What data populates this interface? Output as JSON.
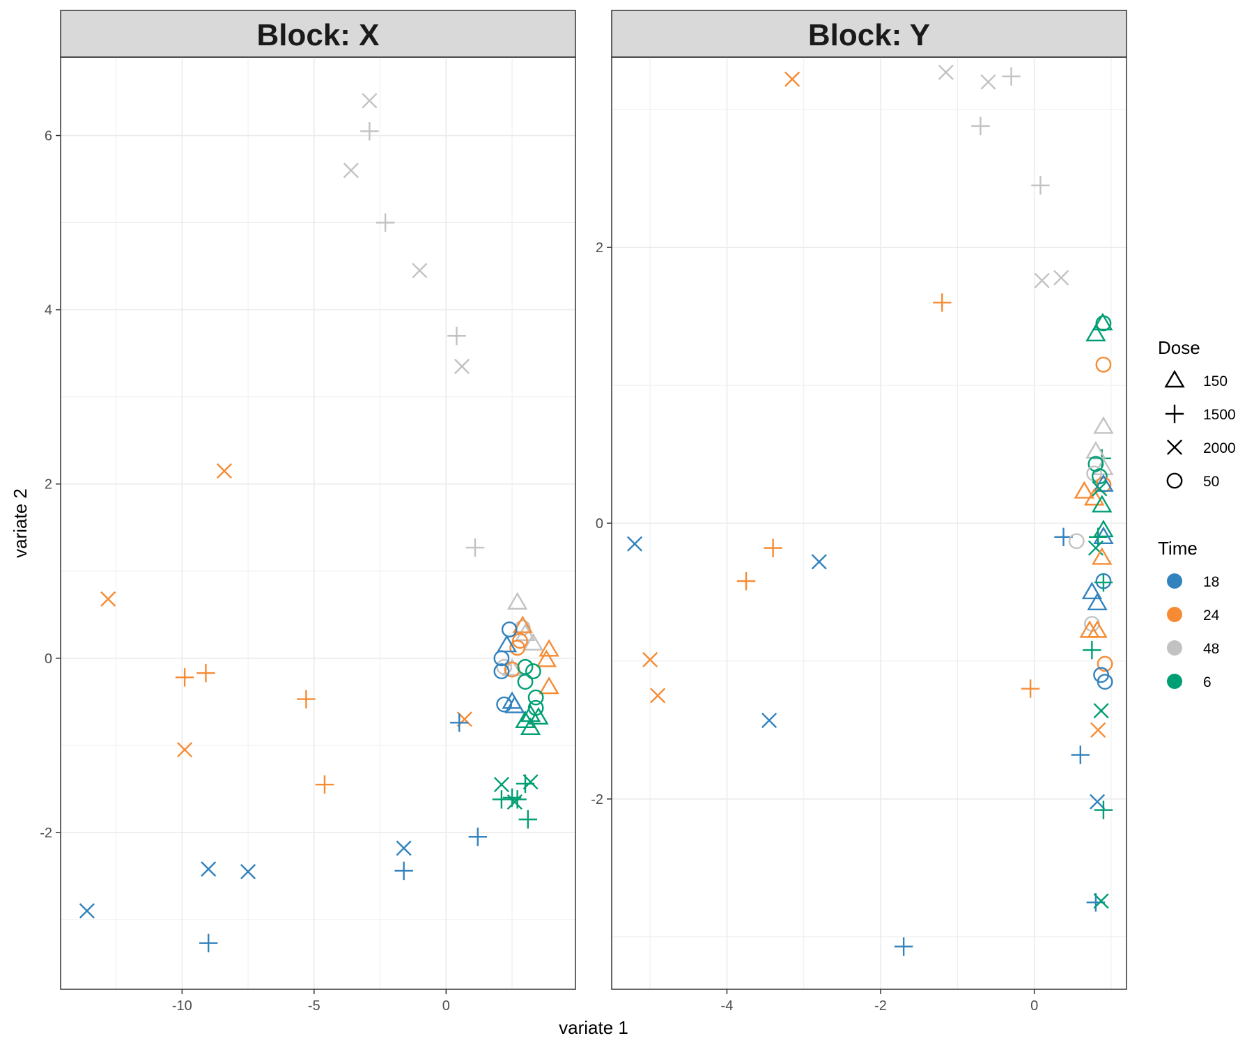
{
  "chart_data": {
    "type": "scatter",
    "xlabel": "variate 1",
    "ylabel": "variate 2",
    "colors": {
      "18": "#3182bd",
      "24": "#f68b33",
      "48": "#c2c2c2",
      "6": "#009e73"
    },
    "legends": [
      {
        "title": "Dose",
        "kind": "shape",
        "entries": [
          {
            "label": "150",
            "shape": "triangle"
          },
          {
            "label": "1500",
            "shape": "plus"
          },
          {
            "label": "2000",
            "shape": "cross"
          },
          {
            "label": "50",
            "shape": "circle"
          }
        ]
      },
      {
        "title": "Time",
        "kind": "color",
        "entries": [
          {
            "label": "18",
            "color": "#3182bd"
          },
          {
            "label": "24",
            "color": "#f68b33"
          },
          {
            "label": "48",
            "color": "#c2c2c2"
          },
          {
            "label": "6",
            "color": "#009e73"
          }
        ]
      }
    ],
    "panels": [
      {
        "title": "Block: X",
        "xlim": [
          -14.6,
          4.9
        ],
        "ylim": [
          -3.8,
          6.9
        ],
        "xticks": [
          -10,
          -5,
          0
        ],
        "yticks": [
          -2,
          0,
          2,
          4,
          6
        ],
        "grid": true,
        "points": [
          {
            "x": -2.9,
            "y": 6.4,
            "dose": "2000",
            "time": "48"
          },
          {
            "x": -2.9,
            "y": 6.05,
            "dose": "1500",
            "time": "48"
          },
          {
            "x": -3.6,
            "y": 5.6,
            "dose": "2000",
            "time": "48"
          },
          {
            "x": -2.3,
            "y": 5.0,
            "dose": "1500",
            "time": "48"
          },
          {
            "x": -1.0,
            "y": 4.45,
            "dose": "2000",
            "time": "48"
          },
          {
            "x": 0.4,
            "y": 3.7,
            "dose": "1500",
            "time": "48"
          },
          {
            "x": 0.6,
            "y": 3.35,
            "dose": "2000",
            "time": "48"
          },
          {
            "x": 1.1,
            "y": 1.27,
            "dose": "1500",
            "time": "48"
          },
          {
            "x": -8.4,
            "y": 2.15,
            "dose": "2000",
            "time": "24"
          },
          {
            "x": -12.8,
            "y": 0.68,
            "dose": "2000",
            "time": "24"
          },
          {
            "x": -9.9,
            "y": -0.22,
            "dose": "1500",
            "time": "24"
          },
          {
            "x": -9.1,
            "y": -0.17,
            "dose": "1500",
            "time": "24"
          },
          {
            "x": -5.3,
            "y": -0.47,
            "dose": "1500",
            "time": "24"
          },
          {
            "x": -9.9,
            "y": -1.05,
            "dose": "2000",
            "time": "24"
          },
          {
            "x": -4.6,
            "y": -1.45,
            "dose": "1500",
            "time": "24"
          },
          {
            "x": 0.7,
            "y": -0.7,
            "dose": "2000",
            "time": "24"
          },
          {
            "x": 0.5,
            "y": -0.74,
            "dose": "1500",
            "time": "18"
          },
          {
            "x": -1.6,
            "y": -2.18,
            "dose": "2000",
            "time": "18"
          },
          {
            "x": -1.6,
            "y": -2.44,
            "dose": "1500",
            "time": "18"
          },
          {
            "x": 1.2,
            "y": -2.05,
            "dose": "1500",
            "time": "18"
          },
          {
            "x": -9.0,
            "y": -2.42,
            "dose": "2000",
            "time": "18"
          },
          {
            "x": -7.5,
            "y": -2.45,
            "dose": "2000",
            "time": "18"
          },
          {
            "x": -13.6,
            "y": -2.9,
            "dose": "2000",
            "time": "18"
          },
          {
            "x": -9.0,
            "y": -3.27,
            "dose": "1500",
            "time": "18"
          },
          {
            "x": 2.1,
            "y": -1.45,
            "dose": "2000",
            "time": "6"
          },
          {
            "x": 2.1,
            "y": -1.62,
            "dose": "1500",
            "time": "6"
          },
          {
            "x": 2.5,
            "y": -1.6,
            "dose": "1500",
            "time": "6"
          },
          {
            "x": 2.6,
            "y": -1.65,
            "dose": "2000",
            "time": "6"
          },
          {
            "x": 2.7,
            "y": -1.62,
            "dose": "1500",
            "time": "6"
          },
          {
            "x": 3.0,
            "y": -1.44,
            "dose": "1500",
            "time": "6"
          },
          {
            "x": 3.2,
            "y": -1.42,
            "dose": "2000",
            "time": "6"
          },
          {
            "x": 3.1,
            "y": -1.85,
            "dose": "1500",
            "time": "6"
          },
          {
            "x": 2.7,
            "y": 0.64,
            "dose": "150",
            "time": "48"
          },
          {
            "x": 2.9,
            "y": 0.35,
            "dose": "50",
            "time": "48"
          },
          {
            "x": 3.0,
            "y": 0.28,
            "dose": "150",
            "time": "48"
          },
          {
            "x": 3.3,
            "y": 0.17,
            "dose": "150",
            "time": "48"
          },
          {
            "x": 2.2,
            "y": -0.1,
            "dose": "50",
            "time": "48"
          },
          {
            "x": 2.5,
            "y": -0.12,
            "dose": "150",
            "time": "48"
          },
          {
            "x": 2.9,
            "y": 0.37,
            "dose": "150",
            "time": "24"
          },
          {
            "x": 2.8,
            "y": 0.2,
            "dose": "50",
            "time": "24"
          },
          {
            "x": 2.7,
            "y": 0.12,
            "dose": "50",
            "time": "24"
          },
          {
            "x": 3.9,
            "y": 0.1,
            "dose": "150",
            "time": "24"
          },
          {
            "x": 3.8,
            "y": -0.02,
            "dose": "150",
            "time": "24"
          },
          {
            "x": 3.9,
            "y": -0.33,
            "dose": "150",
            "time": "24"
          },
          {
            "x": 2.5,
            "y": -0.13,
            "dose": "50",
            "time": "24"
          },
          {
            "x": 2.4,
            "y": 0.33,
            "dose": "50",
            "time": "18"
          },
          {
            "x": 2.3,
            "y": 0.15,
            "dose": "150",
            "time": "18"
          },
          {
            "x": 2.1,
            "y": 0.0,
            "dose": "50",
            "time": "18"
          },
          {
            "x": 2.1,
            "y": -0.15,
            "dose": "50",
            "time": "18"
          },
          {
            "x": 2.2,
            "y": -0.53,
            "dose": "50",
            "time": "18"
          },
          {
            "x": 2.5,
            "y": -0.5,
            "dose": "150",
            "time": "18"
          },
          {
            "x": 2.6,
            "y": -0.55,
            "dose": "150",
            "time": "18"
          },
          {
            "x": 3.0,
            "y": -0.1,
            "dose": "50",
            "time": "6"
          },
          {
            "x": 3.3,
            "y": -0.15,
            "dose": "50",
            "time": "6"
          },
          {
            "x": 3.0,
            "y": -0.27,
            "dose": "50",
            "time": "6"
          },
          {
            "x": 3.4,
            "y": -0.45,
            "dose": "50",
            "time": "6"
          },
          {
            "x": 3.4,
            "y": -0.57,
            "dose": "50",
            "time": "6"
          },
          {
            "x": 3.2,
            "y": -0.65,
            "dose": "150",
            "time": "6"
          },
          {
            "x": 3.5,
            "y": -0.68,
            "dose": "150",
            "time": "6"
          },
          {
            "x": 3.0,
            "y": -0.72,
            "dose": "150",
            "time": "6"
          },
          {
            "x": 3.2,
            "y": -0.8,
            "dose": "150",
            "time": "6"
          }
        ]
      },
      {
        "title": "Block: Y",
        "xlim": [
          -5.5,
          1.2
        ],
        "ylim": [
          -3.38,
          3.38
        ],
        "xticks": [
          -4,
          -2,
          0
        ],
        "yticks": [
          -2,
          0,
          2
        ],
        "grid": true,
        "points": [
          {
            "x": -3.15,
            "y": 3.22,
            "dose": "2000",
            "time": "24"
          },
          {
            "x": -1.15,
            "y": 3.27,
            "dose": "2000",
            "time": "48"
          },
          {
            "x": -0.6,
            "y": 3.2,
            "dose": "2000",
            "time": "48"
          },
          {
            "x": -0.3,
            "y": 3.24,
            "dose": "1500",
            "time": "48"
          },
          {
            "x": -0.7,
            "y": 2.88,
            "dose": "1500",
            "time": "48"
          },
          {
            "x": 0.08,
            "y": 2.45,
            "dose": "1500",
            "time": "48"
          },
          {
            "x": 0.1,
            "y": 1.76,
            "dose": "2000",
            "time": "48"
          },
          {
            "x": 0.35,
            "y": 1.78,
            "dose": "2000",
            "time": "48"
          },
          {
            "x": -1.2,
            "y": 1.6,
            "dose": "1500",
            "time": "24"
          },
          {
            "x": -5.2,
            "y": -0.15,
            "dose": "2000",
            "time": "18"
          },
          {
            "x": -3.75,
            "y": -0.42,
            "dose": "1500",
            "time": "24"
          },
          {
            "x": -3.4,
            "y": -0.18,
            "dose": "1500",
            "time": "24"
          },
          {
            "x": -2.8,
            "y": -0.28,
            "dose": "2000",
            "time": "18"
          },
          {
            "x": -5.0,
            "y": -0.99,
            "dose": "2000",
            "time": "24"
          },
          {
            "x": -4.9,
            "y": -1.25,
            "dose": "2000",
            "time": "24"
          },
          {
            "x": -3.45,
            "y": -1.43,
            "dose": "2000",
            "time": "18"
          },
          {
            "x": -0.05,
            "y": -1.2,
            "dose": "1500",
            "time": "24"
          },
          {
            "x": -1.7,
            "y": -3.07,
            "dose": "1500",
            "time": "18"
          },
          {
            "x": 0.38,
            "y": -0.1,
            "dose": "1500",
            "time": "18"
          },
          {
            "x": 0.55,
            "y": -0.13,
            "dose": "50",
            "time": "48"
          },
          {
            "x": 0.6,
            "y": -1.68,
            "dose": "1500",
            "time": "18"
          },
          {
            "x": 0.82,
            "y": -2.02,
            "dose": "2000",
            "time": "18"
          },
          {
            "x": 0.9,
            "y": -2.08,
            "dose": "1500",
            "time": "6"
          },
          {
            "x": 0.8,
            "y": -2.75,
            "dose": "1500",
            "time": "18"
          },
          {
            "x": 0.87,
            "y": -2.74,
            "dose": "2000",
            "time": "6"
          },
          {
            "x": 0.83,
            "y": -1.5,
            "dose": "2000",
            "time": "24"
          },
          {
            "x": 0.87,
            "y": -1.36,
            "dose": "2000",
            "time": "6"
          },
          {
            "x": 0.75,
            "y": -0.92,
            "dose": "1500",
            "time": "6"
          },
          {
            "x": 0.89,
            "y": 1.45,
            "dose": "150",
            "time": "6"
          },
          {
            "x": 0.9,
            "y": 1.45,
            "dose": "50",
            "time": "6"
          },
          {
            "x": 0.8,
            "y": 1.37,
            "dose": "150",
            "time": "6"
          },
          {
            "x": 0.9,
            "y": 1.15,
            "dose": "50",
            "time": "24"
          },
          {
            "x": 0.9,
            "y": 0.7,
            "dose": "150",
            "time": "48"
          },
          {
            "x": 0.88,
            "y": 0.47,
            "dose": "1500",
            "time": "6"
          },
          {
            "x": 0.8,
            "y": 0.52,
            "dose": "150",
            "time": "48"
          },
          {
            "x": 0.9,
            "y": 0.4,
            "dose": "150",
            "time": "48"
          },
          {
            "x": 0.8,
            "y": 0.43,
            "dose": "50",
            "time": "6"
          },
          {
            "x": 0.78,
            "y": 0.36,
            "dose": "50",
            "time": "48"
          },
          {
            "x": 0.85,
            "y": 0.34,
            "dose": "50",
            "time": "6"
          },
          {
            "x": 0.9,
            "y": 0.28,
            "dose": "50",
            "time": "24"
          },
          {
            "x": 0.9,
            "y": 0.28,
            "dose": "150",
            "time": "18"
          },
          {
            "x": 0.65,
            "y": 0.23,
            "dose": "150",
            "time": "24"
          },
          {
            "x": 0.78,
            "y": 0.18,
            "dose": "150",
            "time": "24"
          },
          {
            "x": 0.85,
            "y": 0.25,
            "dose": "2000",
            "time": "6"
          },
          {
            "x": 0.88,
            "y": 0.13,
            "dose": "150",
            "time": "6"
          },
          {
            "x": 0.9,
            "y": -0.05,
            "dose": "150",
            "time": "6"
          },
          {
            "x": 0.9,
            "y": -0.1,
            "dose": "150",
            "time": "18"
          },
          {
            "x": 0.83,
            "y": -0.1,
            "dose": "1500",
            "time": "6"
          },
          {
            "x": 0.8,
            "y": -0.18,
            "dose": "2000",
            "time": "6"
          },
          {
            "x": 0.88,
            "y": -0.25,
            "dose": "150",
            "time": "24"
          },
          {
            "x": 0.9,
            "y": -0.42,
            "dose": "50",
            "time": "18"
          },
          {
            "x": 0.9,
            "y": -0.43,
            "dose": "1500",
            "time": "6"
          },
          {
            "x": 0.75,
            "y": -0.5,
            "dose": "150",
            "time": "18"
          },
          {
            "x": 0.82,
            "y": -0.58,
            "dose": "150",
            "time": "18"
          },
          {
            "x": 0.75,
            "y": -0.73,
            "dose": "50",
            "time": "48"
          },
          {
            "x": 0.72,
            "y": -0.78,
            "dose": "150",
            "time": "24"
          },
          {
            "x": 0.82,
            "y": -0.78,
            "dose": "150",
            "time": "24"
          },
          {
            "x": 0.92,
            "y": -1.02,
            "dose": "50",
            "time": "24"
          },
          {
            "x": 0.87,
            "y": -1.1,
            "dose": "50",
            "time": "18"
          },
          {
            "x": 0.92,
            "y": -1.15,
            "dose": "50",
            "time": "18"
          }
        ]
      }
    ]
  }
}
